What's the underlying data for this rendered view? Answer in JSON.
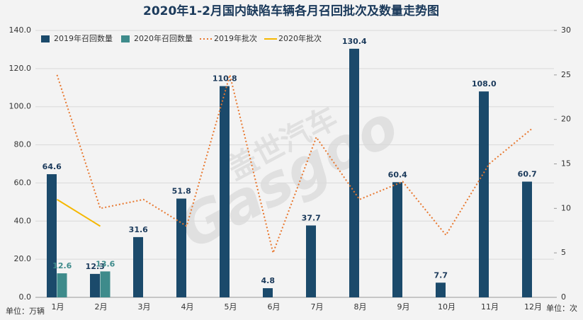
{
  "chart_data": {
    "type": "bar_line",
    "title": "2020年1-2月国内缺陷车辆各月召回批次及数量走势图",
    "y_label": "单位：万辆",
    "y2_label": "单位：次",
    "watermark": [
      "盖世汽车",
      "Gasgoo"
    ],
    "categories": [
      "1月",
      "2月",
      "3月",
      "4月",
      "5月",
      "6月",
      "7月",
      "8月",
      "9月",
      "10月",
      "11月",
      "12月"
    ],
    "series": [
      {
        "name": "2019年召回数量",
        "kind": "bar",
        "color": "#1b4a6b",
        "values": [
          64.6,
          12.3,
          31.6,
          51.8,
          110.8,
          4.8,
          37.7,
          130.4,
          60.4,
          7.7,
          108.0,
          60.7
        ],
        "value_labels": [
          "64.6",
          "12.3",
          "31.6",
          "51.8",
          "110.8",
          "4.8",
          "37.7",
          "130.4",
          "60.4",
          "7.7",
          "108.0",
          "60.7"
        ]
      },
      {
        "name": "2020年召回数量",
        "kind": "bar",
        "color": "#3e8b8b",
        "values": [
          12.6,
          13.6,
          null,
          null,
          null,
          null,
          null,
          null,
          null,
          null,
          null,
          null
        ],
        "value_labels": [
          "12.6",
          "13.6",
          null,
          null,
          null,
          null,
          null,
          null,
          null,
          null,
          null,
          null
        ]
      },
      {
        "name": "2019年批次",
        "kind": "line",
        "axis": "y2",
        "color": "#e8772e",
        "dashed": true,
        "values": [
          25,
          10,
          11,
          8,
          25,
          5,
          18,
          11,
          13,
          7,
          15,
          19
        ]
      },
      {
        "name": "2020年批次",
        "kind": "line",
        "axis": "y2",
        "color": "#f5b700",
        "dashed": false,
        "values": [
          11,
          8,
          null,
          null,
          null,
          null,
          null,
          null,
          null,
          null,
          null,
          null
        ]
      }
    ],
    "ylim": [
      0,
      140
    ],
    "yticks": [
      {
        "value": 0,
        "label": "0.0"
      },
      {
        "value": 20,
        "label": "20.0"
      },
      {
        "value": 40,
        "label": "40.0"
      },
      {
        "value": 60,
        "label": "60.0"
      },
      {
        "value": 80,
        "label": "80.0"
      },
      {
        "value": 100,
        "label": "100.0"
      },
      {
        "value": 120,
        "label": "120.0"
      },
      {
        "value": 140,
        "label": "140.0"
      }
    ],
    "y2lim": [
      0,
      30
    ],
    "y2ticks": [
      0,
      5,
      10,
      15,
      20,
      25,
      30
    ],
    "grid": true,
    "legend_position": "upper left"
  }
}
